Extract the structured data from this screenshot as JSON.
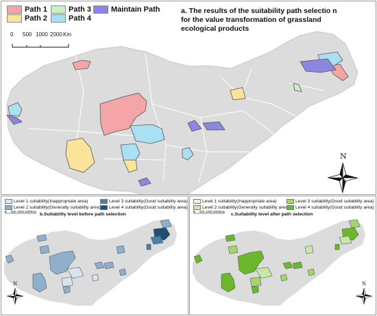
{
  "panel_a": {
    "title": "a. The results of the suitability path selectio n for the value transformation of grassland ecological products",
    "legend": [
      {
        "label": "Path 1",
        "color": "#f4a6a6"
      },
      {
        "label": "Path 2",
        "color": "#fbe39a"
      },
      {
        "label": "Path 3",
        "color": "#c9f0c3"
      },
      {
        "label": "Path 4",
        "color": "#a9e1f3"
      },
      {
        "label": "Maintain Path",
        "color": "#8b87e0"
      }
    ],
    "scale": {
      "ticks": [
        "0",
        "500",
        "1000",
        "2000"
      ],
      "unit": "Km"
    },
    "north": "N"
  },
  "panel_b": {
    "title": "b.Suitability level before path selection",
    "legend": [
      {
        "label": "Level 1 suitability(Inappropriate area)",
        "color": "#d7e3ee"
      },
      {
        "label": "Level 2 suitability(Generally suitability area)",
        "color": "#8fb0cc"
      },
      {
        "label": "Level 3 suitability(Good suitability area)",
        "color": "#4d7ea6"
      },
      {
        "label": "Level 4 suitability(Good suitability area)",
        "color": "#1f4e79"
      }
    ],
    "scale": {
      "ticks": [
        "0",
        "500",
        "1000",
        "2000"
      ],
      "unit": "Km"
    },
    "north": "N"
  },
  "panel_c": {
    "title": "c.Suitability level after path selection",
    "legend": [
      {
        "label": "Level 1 suitability(Inappropriate area)",
        "color": "#e8f5dc"
      },
      {
        "label": "Level 2 suitability(Generally suitability area)",
        "color": "#c9e7a8"
      },
      {
        "label": "Level 3 suitability(Good suitability area)",
        "color": "#a5d46a"
      },
      {
        "label": "Level 4 suitability(Good suitability area)",
        "color": "#6bb82a"
      }
    ],
    "scale": {
      "ticks": [
        "0",
        "500",
        "1000",
        "2000"
      ],
      "unit": "Km"
    },
    "north": "N"
  },
  "colors": {
    "land": "#dcdcdc",
    "boundary": "#ffffff",
    "region_outline": "#555555"
  }
}
